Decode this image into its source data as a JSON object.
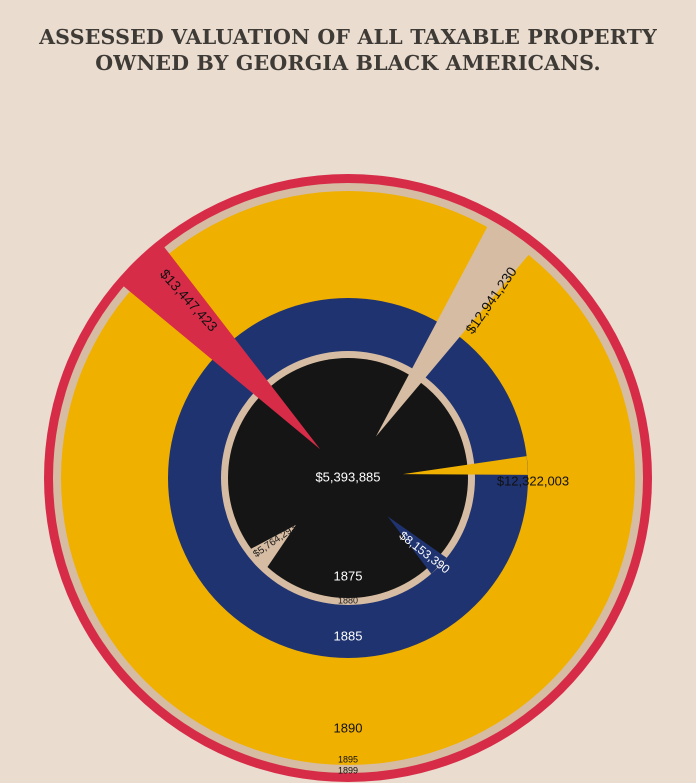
{
  "title_lines": [
    "ASSESSED VALUATION OF ALL TAXABLE PROPERTY",
    "OWNED BY GEORGIA BLACK AMERICANS."
  ],
  "colors": {
    "background": "#eadccf",
    "red": "#d72c48",
    "tan": "#d6bca2",
    "gold": "#f0b000",
    "navy": "#1f3370",
    "black": "#151515",
    "title": "#3e3a36"
  },
  "chart_data": {
    "type": "spiral",
    "title": "ASSESSED VALUATION OF ALL TAXABLE PROPERTY OWNED BY GEORGIA BLACK AMERICANS.",
    "categories": [
      "1875",
      "1880",
      "1885",
      "1890",
      "1895",
      "1899"
    ],
    "values": [
      5393885,
      5764293,
      8153390,
      12322003,
      12941230,
      13447423
    ],
    "value_labels": [
      "$5,393,885",
      "$5,764,293",
      "$8,153,390",
      "$12,322,003",
      "$12,941,230",
      "$13,447,423"
    ],
    "series_colors": [
      "#151515",
      "#d6bca2",
      "#1f3370",
      "#f0b000",
      "#d6bca2",
      "#d72c48"
    ]
  }
}
